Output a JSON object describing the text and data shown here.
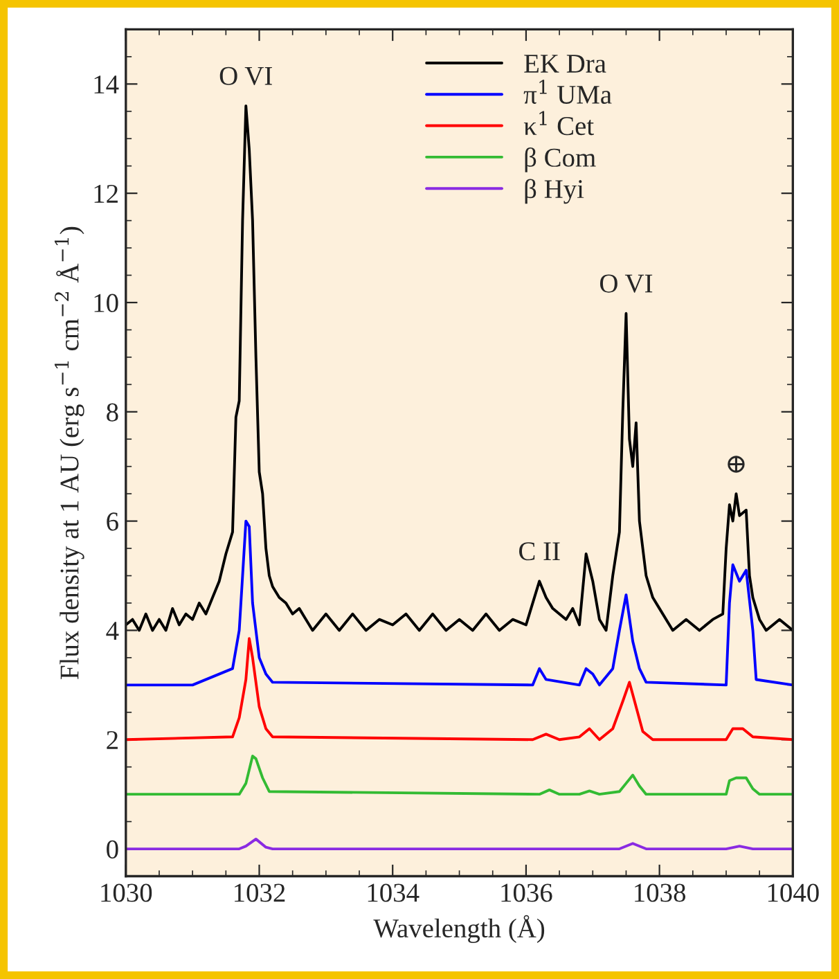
{
  "chart_data": {
    "type": "line",
    "xlabel": "Wavelength (Å)",
    "ylabel": "Flux density at 1 AU (erg s$^{−1}$ cm$^{−2}$ Å$^{−1}$)",
    "xlim": [
      1030,
      1040
    ],
    "xticks": [
      1030,
      1032,
      1034,
      1036,
      1038,
      1040
    ],
    "ylim": [
      -0.5,
      15
    ],
    "yticks": [
      0,
      2,
      4,
      6,
      8,
      10,
      12,
      14
    ],
    "legend": "top",
    "grid": false,
    "annotations": [
      {
        "text": "O VI",
        "x": 1031.8,
        "y": 13.6
      },
      {
        "text": "O VI",
        "x": 1037.5,
        "y": 9.8
      },
      {
        "text": "C II",
        "x": 1036.2,
        "y": 4.9
      },
      {
        "text": "⊕",
        "x": 1039.15,
        "y": 6.5
      }
    ],
    "series": [
      {
        "name": "EK Dra",
        "color": "#000000",
        "x": [
          1030.0,
          1030.1,
          1030.2,
          1030.3,
          1030.4,
          1030.5,
          1030.6,
          1030.7,
          1030.8,
          1030.9,
          1031.0,
          1031.1,
          1031.2,
          1031.3,
          1031.4,
          1031.5,
          1031.6,
          1031.65,
          1031.7,
          1031.75,
          1031.8,
          1031.85,
          1031.9,
          1031.95,
          1032.0,
          1032.05,
          1032.1,
          1032.15,
          1032.2,
          1032.3,
          1032.4,
          1032.5,
          1032.6,
          1032.7,
          1032.8,
          1033.0,
          1033.2,
          1033.4,
          1033.6,
          1033.8,
          1034.0,
          1034.2,
          1034.4,
          1034.6,
          1034.8,
          1035.0,
          1035.2,
          1035.4,
          1035.6,
          1035.8,
          1036.0,
          1036.2,
          1036.3,
          1036.4,
          1036.5,
          1036.6,
          1036.7,
          1036.8,
          1036.9,
          1037.0,
          1037.1,
          1037.2,
          1037.3,
          1037.4,
          1037.45,
          1037.5,
          1037.55,
          1037.6,
          1037.65,
          1037.7,
          1037.8,
          1037.9,
          1038.0,
          1038.2,
          1038.4,
          1038.6,
          1038.8,
          1038.95,
          1039.0,
          1039.05,
          1039.1,
          1039.15,
          1039.2,
          1039.3,
          1039.35,
          1039.4,
          1039.5,
          1039.6,
          1039.8,
          1040.0
        ],
        "values": [
          4.1,
          4.2,
          4.0,
          4.3,
          4.0,
          4.2,
          4.0,
          4.4,
          4.1,
          4.3,
          4.2,
          4.5,
          4.3,
          4.6,
          4.9,
          5.4,
          5.8,
          7.9,
          8.2,
          11.5,
          13.6,
          12.8,
          11.5,
          9.0,
          6.9,
          6.5,
          5.5,
          5.0,
          4.8,
          4.6,
          4.5,
          4.3,
          4.4,
          4.2,
          4.0,
          4.3,
          4.0,
          4.3,
          4.0,
          4.2,
          4.1,
          4.3,
          4.0,
          4.3,
          4.0,
          4.2,
          4.0,
          4.3,
          4.0,
          4.2,
          4.1,
          4.9,
          4.6,
          4.4,
          4.3,
          4.2,
          4.4,
          4.1,
          5.4,
          4.9,
          4.2,
          4.0,
          5.0,
          5.8,
          8.0,
          9.8,
          7.5,
          7.0,
          7.8,
          6.0,
          5.0,
          4.6,
          4.4,
          4.0,
          4.2,
          4.0,
          4.2,
          4.3,
          5.5,
          6.3,
          6.0,
          6.5,
          6.1,
          6.2,
          5.0,
          4.6,
          4.2,
          4.0,
          4.2,
          4.0
        ]
      },
      {
        "name": "π$^{1}$ UMa",
        "color": "#0000ff",
        "x": [
          1030.0,
          1031.0,
          1031.6,
          1031.7,
          1031.75,
          1031.8,
          1031.85,
          1031.9,
          1032.0,
          1032.1,
          1032.2,
          1036.1,
          1036.2,
          1036.3,
          1036.8,
          1036.9,
          1037.0,
          1037.1,
          1037.3,
          1037.4,
          1037.5,
          1037.6,
          1037.7,
          1037.8,
          1039.0,
          1039.05,
          1039.1,
          1039.2,
          1039.3,
          1039.4,
          1039.45,
          1040.0
        ],
        "values": [
          3.0,
          3.0,
          3.3,
          4.0,
          5.0,
          6.0,
          5.9,
          4.5,
          3.5,
          3.2,
          3.05,
          3.0,
          3.3,
          3.1,
          3.0,
          3.3,
          3.2,
          3.0,
          3.3,
          4.0,
          4.65,
          3.8,
          3.3,
          3.05,
          3.0,
          4.5,
          5.2,
          4.9,
          5.1,
          4.0,
          3.1,
          3.0
        ]
      },
      {
        "name": "κ$^{1}$ Cet",
        "color": "#ff0000",
        "x": [
          1030.0,
          1031.6,
          1031.7,
          1031.8,
          1031.85,
          1031.9,
          1032.0,
          1032.1,
          1032.2,
          1036.1,
          1036.3,
          1036.5,
          1036.8,
          1036.95,
          1037.1,
          1037.3,
          1037.45,
          1037.55,
          1037.65,
          1037.75,
          1037.9,
          1039.0,
          1039.1,
          1039.25,
          1039.4,
          1040.0
        ],
        "values": [
          2.0,
          2.05,
          2.4,
          3.1,
          3.85,
          3.5,
          2.6,
          2.2,
          2.05,
          2.0,
          2.1,
          2.0,
          2.05,
          2.2,
          2.0,
          2.2,
          2.7,
          3.05,
          2.6,
          2.15,
          2.0,
          2.0,
          2.2,
          2.2,
          2.05,
          2.0
        ]
      },
      {
        "name": "β Com",
        "color": "#33bb33",
        "x": [
          1030.0,
          1031.7,
          1031.8,
          1031.9,
          1031.95,
          1032.05,
          1032.15,
          1036.2,
          1036.35,
          1036.5,
          1036.8,
          1036.95,
          1037.1,
          1037.4,
          1037.5,
          1037.6,
          1037.7,
          1037.8,
          1039.0,
          1039.05,
          1039.15,
          1039.3,
          1039.4,
          1039.5,
          1040.0
        ],
        "values": [
          1.0,
          1.0,
          1.2,
          1.7,
          1.65,
          1.3,
          1.05,
          1.0,
          1.08,
          1.0,
          1.0,
          1.06,
          1.0,
          1.05,
          1.2,
          1.35,
          1.15,
          1.0,
          1.0,
          1.25,
          1.3,
          1.3,
          1.1,
          1.0,
          1.0
        ]
      },
      {
        "name": "β Hyi",
        "color": "#8a2be2",
        "x": [
          1030.0,
          1031.7,
          1031.8,
          1031.95,
          1032.1,
          1032.2,
          1037.4,
          1037.6,
          1037.8,
          1039.0,
          1039.2,
          1039.4,
          1040.0
        ],
        "values": [
          0.0,
          0.0,
          0.05,
          0.18,
          0.03,
          0.0,
          0.0,
          0.1,
          0.0,
          0.0,
          0.05,
          0.0,
          0.0
        ]
      }
    ]
  }
}
